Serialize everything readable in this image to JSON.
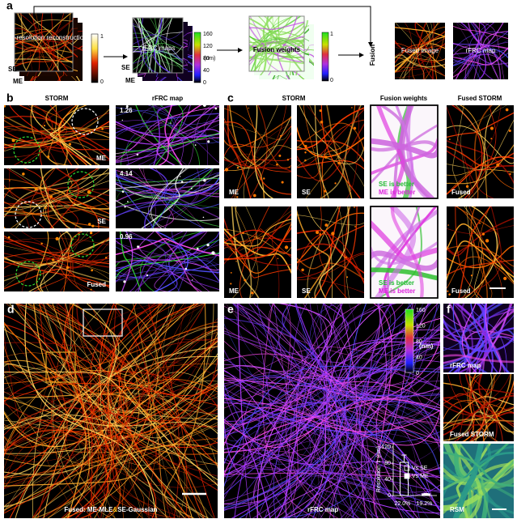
{
  "panel_a": {
    "label": "a",
    "reconstructions": "Super-resolution reconstructions",
    "se": "SE",
    "me": "ME",
    "cbar_top": 1,
    "cbar_bottom": 0,
    "rfrc_maps": "rFRC maps",
    "se2": "SE",
    "me2": "ME",
    "rfrc_ticks": [
      160,
      120,
      80,
      40,
      0
    ],
    "unit": "(nm)",
    "fusion_weights": "Fusion weights",
    "weights_top": 1,
    "weights_bottom": 0,
    "fusion": "Fusion",
    "fused_image": "Fused image",
    "rfrc_map": "rFRC map"
  },
  "panel_b": {
    "label": "b",
    "storm": "STORM",
    "rfrc_map": "rFRC map",
    "rows": [
      {
        "label": "ME",
        "value": 1.26
      },
      {
        "label": "SE",
        "value": 4.14
      },
      {
        "label": "Fused",
        "value": 0.96
      }
    ]
  },
  "panel_c": {
    "label": "c",
    "storm": "STORM",
    "fusion_weights": "Fusion weights",
    "fused_storm": "Fused STORM",
    "rows": [
      {
        "me": "ME",
        "se": "SE",
        "fused": "Fused",
        "se_better": "SE is better",
        "me_better": "ME is better"
      },
      {
        "me": "ME",
        "se": "SE",
        "fused": "Fused",
        "se_better": "SE is better",
        "me_better": "ME is better"
      }
    ]
  },
  "panel_d": {
    "label": "d",
    "caption_1": "Fused: ME-MLE",
    "caption_amp": "&",
    "caption_2": "SE-Gaussian"
  },
  "panel_e": {
    "label": "e",
    "cbar_ticks": [
      160,
      120,
      80,
      40,
      0
    ],
    "unit": "(nm)",
    "caption": "rFRC map"
  },
  "panel_f": {
    "label": "f",
    "rfrc_map": "rFRC map",
    "fused_storm": "Fused STORM",
    "rsm": "RSM"
  },
  "chart_data": {
    "type": "bar",
    "y_label": "Resolution ⇧ (nm)",
    "categories": [
      "22.0%",
      "19.2%"
    ],
    "ylim": [
      0,
      130
    ],
    "yticks": [
      0,
      40,
      80,
      120
    ],
    "series": [
      {
        "name": "Vs SE",
        "color": "#ffffff",
        "filled": false,
        "values": [
          82,
          null
        ],
        "errors": [
          18,
          null
        ]
      },
      {
        "name": "Vs ME",
        "color": "#ffffff",
        "filled": true,
        "values": [
          null,
          4
        ],
        "errors": [
          null,
          1
        ]
      }
    ]
  }
}
